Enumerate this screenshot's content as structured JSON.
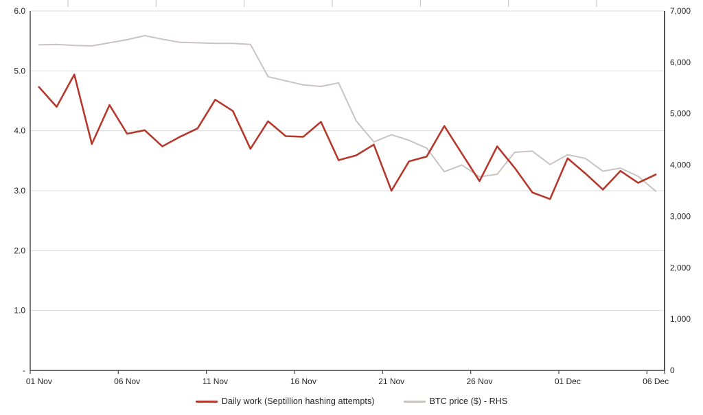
{
  "chart_data": {
    "type": "line",
    "title": "",
    "grid": true,
    "legend_position": "bottom",
    "dates": [
      "01 Nov",
      "02 Nov",
      "03 Nov",
      "04 Nov",
      "05 Nov",
      "06 Nov",
      "07 Nov",
      "08 Nov",
      "09 Nov",
      "10 Nov",
      "11 Nov",
      "12 Nov",
      "13 Nov",
      "14 Nov",
      "15 Nov",
      "16 Nov",
      "17 Nov",
      "18 Nov",
      "19 Nov",
      "20 Nov",
      "21 Nov",
      "22 Nov",
      "23 Nov",
      "24 Nov",
      "25 Nov",
      "26 Nov",
      "27 Nov",
      "28 Nov",
      "29 Nov",
      "30 Nov",
      "01 Dec",
      "02 Dec",
      "03 Dec",
      "04 Dec",
      "05 Dec",
      "06 Dec"
    ],
    "x_tick_labels": [
      "01 Nov",
      "06 Nov",
      "11 Nov",
      "16 Nov",
      "21 Nov",
      "26 Nov",
      "01 Dec",
      "06 Dec"
    ],
    "x_tick_every": 5,
    "series": [
      {
        "name": "Daily work (Septillion hashing attempts)",
        "axis": "left",
        "color": "#b5382d",
        "values": [
          4.73,
          4.4,
          4.94,
          3.78,
          4.43,
          3.95,
          4.01,
          3.74,
          3.9,
          4.04,
          4.52,
          4.33,
          3.7,
          4.16,
          3.91,
          3.9,
          4.15,
          3.51,
          3.59,
          3.77,
          3.0,
          3.49,
          3.57,
          4.08,
          3.62,
          3.16,
          3.74,
          3.38,
          2.97,
          2.86,
          3.54,
          3.29,
          3.02,
          3.33,
          3.13,
          3.27
        ]
      },
      {
        "name": "BTC price ($) - RHS",
        "axis": "right",
        "color": "#c9c3c1",
        "values": [
          6340,
          6350,
          6330,
          6320,
          6380,
          6440,
          6520,
          6450,
          6390,
          6380,
          6370,
          6370,
          6350,
          5720,
          5640,
          5560,
          5530,
          5600,
          4860,
          4450,
          4590,
          4480,
          4330,
          3870,
          4000,
          3770,
          3820,
          4250,
          4270,
          4010,
          4200,
          4130,
          3880,
          3940,
          3780,
          3490
        ]
      }
    ],
    "left_axis": {
      "min": 0,
      "max": 6,
      "tick_interval": 1,
      "labels": [
        "-",
        "1.0",
        "2.0",
        "3.0",
        "4.0",
        "5.0",
        "6.0"
      ]
    },
    "right_axis": {
      "min": 0,
      "max": 7000,
      "tick_interval": 1000,
      "labels": [
        "0",
        "1,000",
        "2,000",
        "3,000",
        "4,000",
        "5,000",
        "6,000",
        "7,000"
      ]
    },
    "colors": {
      "gridline": "#d9d9d9",
      "axis_line": "#404040",
      "tick_text": "#262626",
      "top_tick": "#bfbfbf"
    }
  }
}
